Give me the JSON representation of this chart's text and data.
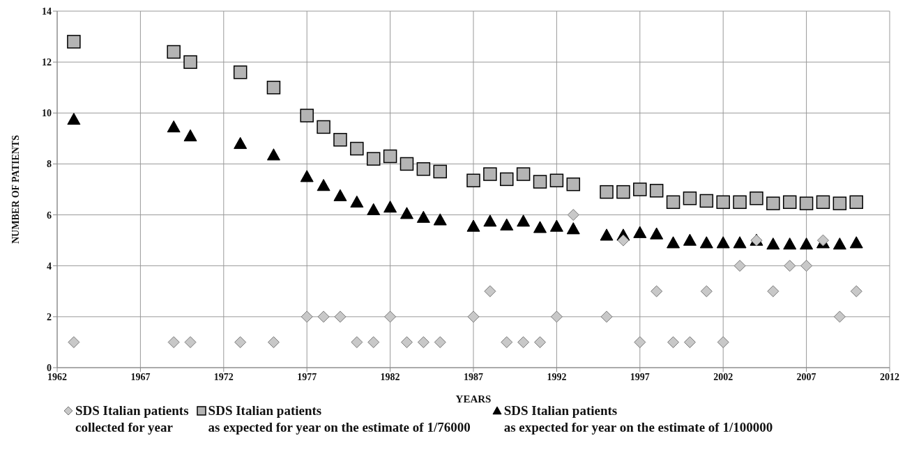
{
  "chart_data": {
    "type": "scatter",
    "xlabel": "YEARS",
    "ylabel": "NUMBER OF PATIENTS",
    "x": [
      1963,
      1969,
      1970,
      1973,
      1975,
      1977,
      1978,
      1979,
      1980,
      1981,
      1982,
      1983,
      1984,
      1985,
      1987,
      1988,
      1989,
      1990,
      1991,
      1992,
      1993,
      1995,
      1996,
      1997,
      1998,
      1999,
      2000,
      2001,
      2002,
      2003,
      2004,
      2005,
      2006,
      2007,
      2008,
      2009,
      2010
    ],
    "series": [
      {
        "name": "SDS Italian patients\ncollected for year",
        "color": "#c8c8c8",
        "marker": "diamond",
        "values": [
          1,
          1,
          1,
          1,
          1,
          2,
          2,
          2,
          1,
          1,
          2,
          1,
          1,
          1,
          2,
          3,
          1,
          1,
          1,
          2,
          6,
          2,
          5,
          1,
          3,
          1,
          1,
          3,
          1,
          4,
          5,
          3,
          4,
          4,
          5,
          2,
          3
        ]
      },
      {
        "name": "SDS Italian patients\nas expected for year on the estimate of 1/76000",
        "color": "#b4b4b4",
        "marker": "square",
        "values": [
          12.8,
          12.4,
          12.0,
          11.6,
          11.0,
          9.9,
          9.45,
          8.95,
          8.6,
          8.2,
          8.3,
          8.0,
          7.8,
          7.7,
          7.35,
          7.6,
          7.4,
          7.6,
          7.3,
          7.35,
          7.2,
          6.9,
          6.9,
          7.0,
          6.95,
          6.5,
          6.65,
          6.55,
          6.5,
          6.5,
          6.65,
          6.45,
          6.5,
          6.45,
          6.5,
          6.45,
          6.5
        ]
      },
      {
        "name": "SDS Italian patients\nas expected for year on the estimate of 1/100000",
        "color": "#000000",
        "marker": "triangle",
        "values": [
          9.75,
          9.45,
          9.1,
          8.8,
          8.35,
          7.5,
          7.15,
          6.75,
          6.5,
          6.2,
          6.3,
          6.05,
          5.9,
          5.8,
          5.55,
          5.75,
          5.6,
          5.75,
          5.5,
          5.55,
          5.45,
          5.2,
          5.2,
          5.3,
          5.25,
          4.9,
          5.0,
          4.9,
          4.9,
          4.9,
          5.0,
          4.85,
          4.85,
          4.85,
          4.9,
          4.85,
          4.9
        ]
      }
    ],
    "xlim": [
      1962,
      2012
    ],
    "xticks": [
      1962,
      1967,
      1972,
      1977,
      1982,
      1987,
      1992,
      1997,
      2002,
      2007,
      2012
    ],
    "ylim": [
      0,
      14
    ],
    "yticks": [
      0,
      2,
      4,
      6,
      8,
      10,
      12,
      14
    ],
    "grid": true,
    "legend": "bottom"
  }
}
